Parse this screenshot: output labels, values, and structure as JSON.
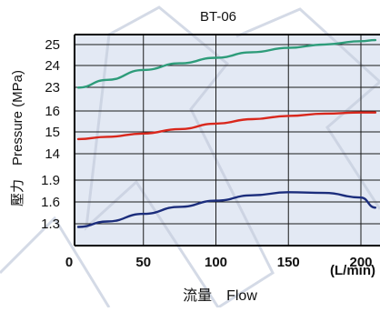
{
  "chart_data": {
    "type": "line",
    "title": "BT-06",
    "xlabel": "流量　Flow",
    "x_unit_label": "(L/min)",
    "ylabel": "壓力　Pressure (MPa)",
    "x_ticks": [
      0,
      50,
      100,
      150,
      200
    ],
    "x_lim": [
      0,
      210
    ],
    "y_ticks": [
      25,
      24,
      23,
      16,
      15,
      14,
      1.9,
      1.6,
      1.3
    ],
    "grid": true,
    "colors": {
      "plot_bg": "#e3e9f4",
      "grid": "#1a1a1a",
      "series_1": "#2e9c7a",
      "series_2": "#d9271c",
      "series_3": "#1b2d7c"
    },
    "series": [
      {
        "band": "high",
        "y_lim": [
          22.6,
          25.4
        ],
        "x": [
          5,
          25,
          50,
          75,
          100,
          125,
          150,
          175,
          200,
          210
        ],
        "values": [
          23.0,
          23.35,
          23.8,
          24.1,
          24.35,
          24.6,
          24.8,
          24.95,
          25.1,
          25.15
        ]
      },
      {
        "band": "mid",
        "y_lim": [
          13.6,
          16.4
        ],
        "x": [
          5,
          25,
          50,
          75,
          100,
          125,
          150,
          175,
          200,
          210
        ],
        "values": [
          14.8,
          14.9,
          15.05,
          15.25,
          15.5,
          15.7,
          15.85,
          15.95,
          16.0,
          16.0
        ]
      },
      {
        "band": "low",
        "y_lim": [
          1.2,
          2.0
        ],
        "x": [
          5,
          25,
          50,
          75,
          100,
          125,
          150,
          175,
          200,
          210
        ],
        "values": [
          1.3,
          1.37,
          1.47,
          1.56,
          1.64,
          1.71,
          1.75,
          1.74,
          1.68,
          1.55
        ]
      }
    ]
  }
}
